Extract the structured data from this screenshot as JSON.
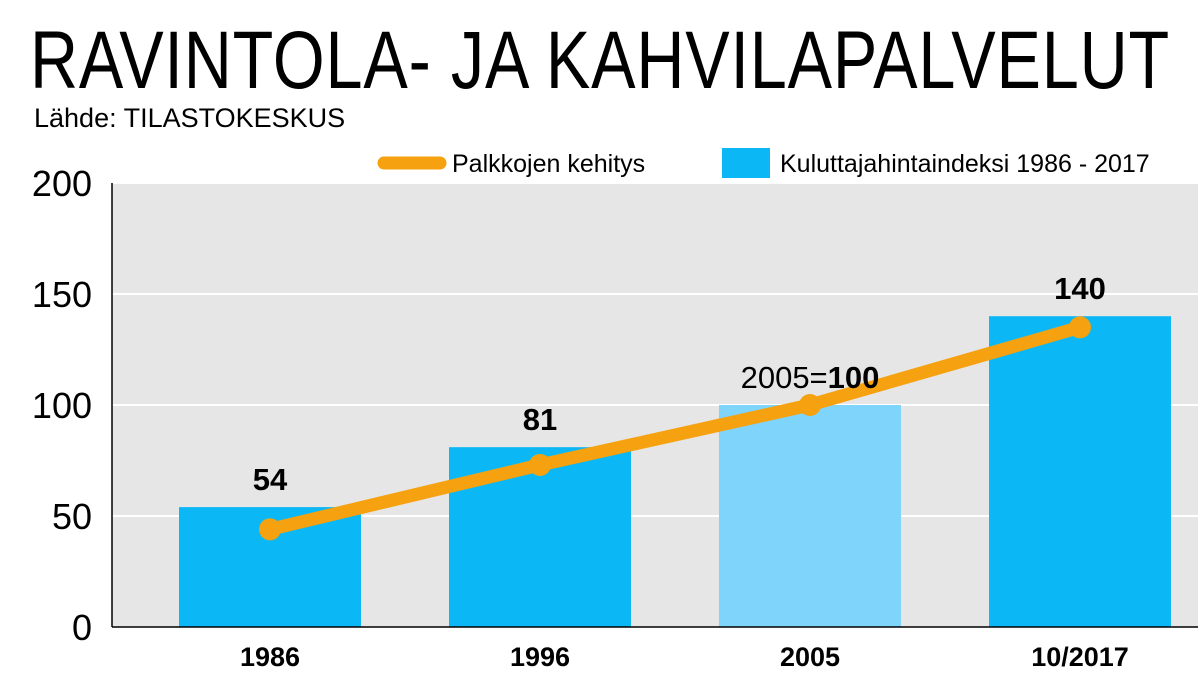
{
  "colors": {
    "plot_background": "#e6e6e6",
    "gridline": "#ffffff",
    "bar": "#0bb8f5",
    "bar_highlight": "#7fd4fb",
    "line": "#f6a10f",
    "text": "#000000"
  },
  "chart_data": {
    "type": "bar",
    "title": "RAVINTOLA- JA KAHVILAPALVELUT",
    "subtitle": "Lähde: TILASTOKESKUS",
    "categories": [
      "1986",
      "1996",
      "2005",
      "10/2017"
    ],
    "series": [
      {
        "name": "Kuluttajahintaindeksi 1986 - 2017",
        "type": "bar",
        "values": [
          54,
          81,
          100,
          140
        ],
        "highlight_index": 2
      },
      {
        "name": "Palkkojen kehitys",
        "type": "line",
        "values": [
          44,
          73,
          100,
          135
        ]
      }
    ],
    "data_labels": [
      "54",
      "81",
      "100",
      "140"
    ],
    "reference_label_prefix": "2005=",
    "ylim": [
      0,
      200
    ],
    "yticks": [
      0,
      50,
      100,
      150,
      200
    ],
    "xlabel": "",
    "ylabel": "",
    "grid": true,
    "legend_position": "top-right"
  }
}
